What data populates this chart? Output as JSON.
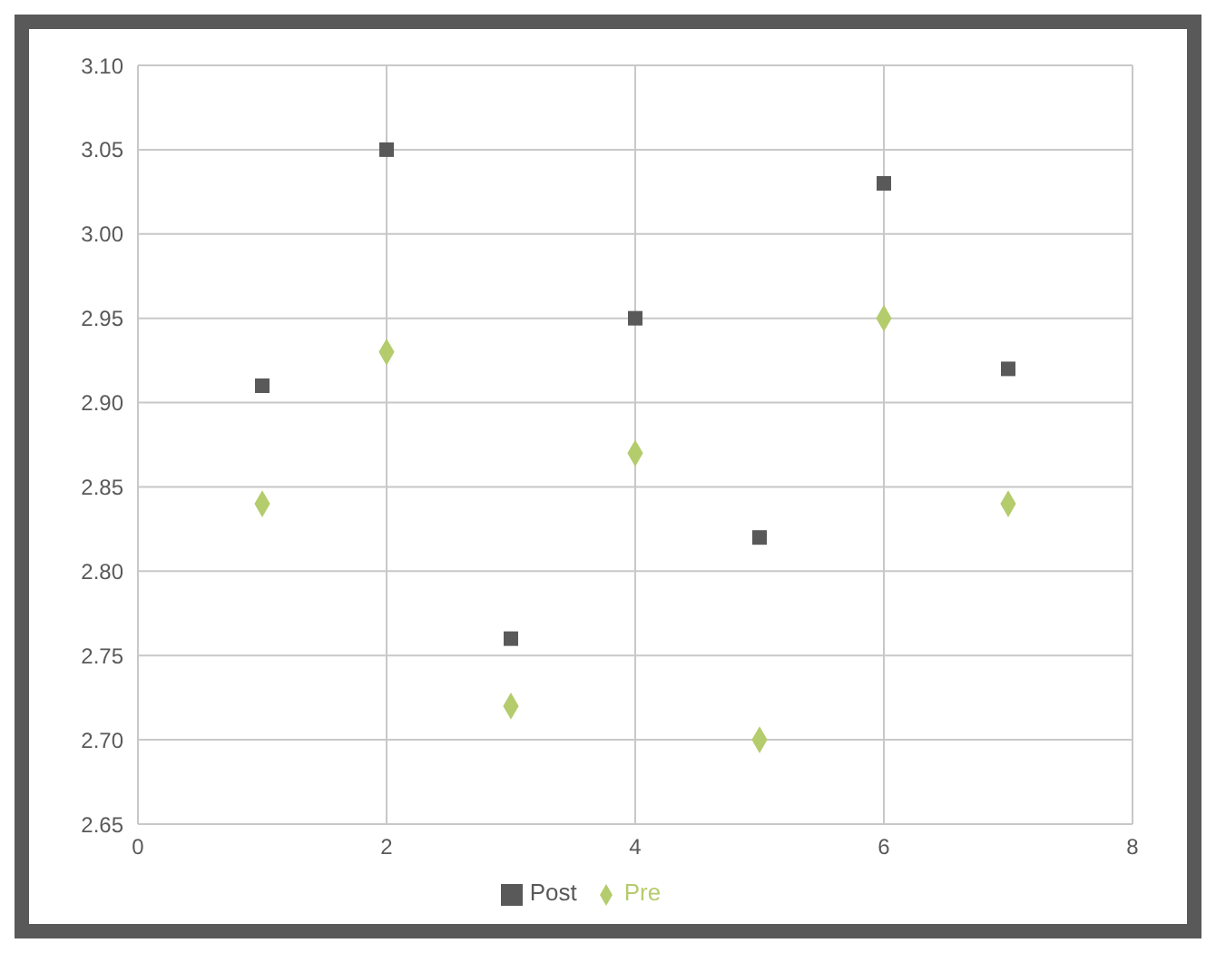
{
  "chart_data": {
    "type": "scatter",
    "x": [
      1,
      2,
      3,
      4,
      5,
      6,
      7
    ],
    "series": [
      {
        "name": "Pre",
        "color": "#b4cc6c",
        "marker": "diamond",
        "values": [
          2.84,
          2.93,
          2.72,
          2.87,
          2.7,
          2.95,
          2.84
        ]
      },
      {
        "name": "Post",
        "color": "#595959",
        "marker": "square",
        "values": [
          2.91,
          3.05,
          2.76,
          2.95,
          2.82,
          3.03,
          2.92
        ]
      }
    ],
    "xlim": [
      0,
      8
    ],
    "xticks": [
      0,
      2,
      4,
      6,
      8
    ],
    "ylim": [
      2.65,
      3.1
    ],
    "yticks": [
      2.65,
      {
        "value": 2.7,
        "label": "2.70"
      },
      2.75,
      {
        "value": 2.8,
        "label": "2.80"
      },
      2.85,
      {
        "value": 2.9,
        "label": "2.90"
      },
      2.95,
      {
        "value": 3.0,
        "label": "3.00"
      },
      3.05,
      {
        "value": 3.1,
        "label": "3.10"
      }
    ],
    "grid": true,
    "legend": "bottom"
  }
}
